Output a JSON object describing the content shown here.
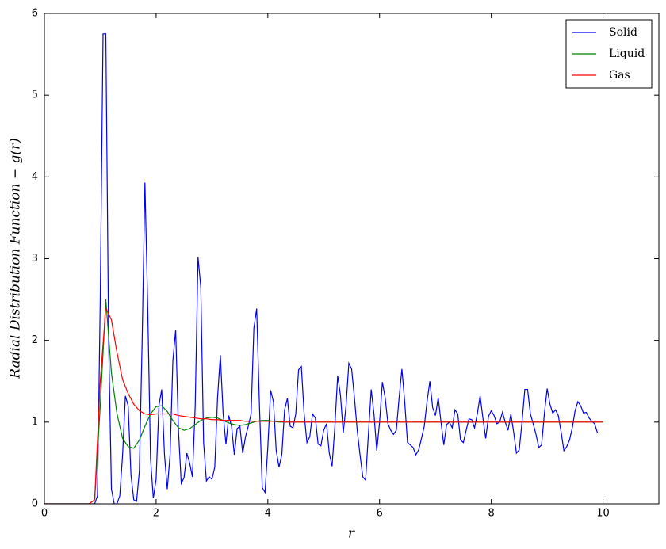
{
  "chart_data": {
    "type": "line",
    "xlabel": "r",
    "ylabel": "Radial Distribution Function − g(r)",
    "xlim": [
      0,
      11
    ],
    "ylim": [
      0,
      6
    ],
    "xticks": [
      0,
      2,
      4,
      6,
      8,
      10
    ],
    "yticks": [
      0,
      1,
      2,
      3,
      4,
      5,
      6
    ],
    "legend": "upper right",
    "series": [
      {
        "name": "Solid",
        "color": "#0000ff",
        "x": [
          0,
          0.05,
          0.1,
          0.15,
          0.2,
          0.25,
          0.3,
          0.35,
          0.4,
          0.45,
          0.5,
          0.55,
          0.6,
          0.65,
          0.7,
          0.75,
          0.8,
          0.85,
          0.9,
          0.95,
          1,
          1.05,
          1.1,
          1.15,
          1.2,
          1.25,
          1.3,
          1.35,
          1.4,
          1.45,
          1.5,
          1.55,
          1.6,
          1.65,
          1.7,
          1.75,
          1.8,
          1.85,
          1.9,
          1.95,
          2,
          2.05,
          2.1,
          2.15,
          2.2,
          2.25,
          2.3,
          2.35,
          2.4,
          2.45,
          2.5,
          2.55,
          2.6,
          2.65,
          2.7,
          2.75,
          2.8,
          2.85,
          2.9,
          2.95,
          3,
          3.05,
          3.1,
          3.15,
          3.2,
          3.25,
          3.3,
          3.35,
          3.4,
          3.45,
          3.5,
          3.55,
          3.6,
          3.65,
          3.7,
          3.75,
          3.8,
          3.85,
          3.9,
          3.95,
          4,
          4.05,
          4.1,
          4.15,
          4.2,
          4.25,
          4.3,
          4.35,
          4.4,
          4.45,
          4.5,
          4.55,
          4.6,
          4.65,
          4.7,
          4.75,
          4.8,
          4.85,
          4.9,
          4.95,
          5,
          5.05,
          5.1,
          5.15,
          5.2,
          5.25,
          5.3,
          5.35,
          5.4,
          5.45,
          5.5,
          5.55,
          5.6,
          5.65,
          5.7,
          5.75,
          5.8,
          5.85,
          5.9,
          5.95,
          6,
          6.05,
          6.1,
          6.15,
          6.2,
          6.25,
          6.3,
          6.35,
          6.4,
          6.45,
          6.5,
          6.55,
          6.6,
          6.65,
          6.7,
          6.75,
          6.8,
          6.85,
          6.9,
          6.95,
          7,
          7.05,
          7.1,
          7.15,
          7.2,
          7.25,
          7.3,
          7.35,
          7.4,
          7.45,
          7.5,
          7.55,
          7.6,
          7.65,
          7.7,
          7.75,
          7.8,
          7.85,
          7.9,
          7.95,
          8,
          8.05,
          8.1,
          8.15,
          8.2,
          8.25,
          8.3,
          8.35,
          8.4,
          8.45,
          8.5,
          8.55,
          8.6,
          8.65,
          8.7,
          8.75,
          8.8,
          8.85,
          8.9,
          8.95,
          9,
          9.05,
          9.1,
          9.15,
          9.2,
          9.25,
          9.3,
          9.35,
          9.4,
          9.45,
          9.5,
          9.55,
          9.6,
          9.65,
          9.7,
          9.75,
          9.8,
          9.85,
          9.9
        ],
        "values": [
          0,
          0,
          0,
          0,
          0,
          0,
          0,
          0,
          0,
          0,
          0,
          0,
          0,
          0,
          0,
          0,
          0,
          0,
          0,
          0.1,
          2.5,
          5.75,
          5.75,
          2.0,
          0.18,
          0,
          0,
          0.1,
          0.6,
          1.32,
          1.2,
          0.35,
          0.05,
          0.03,
          0.4,
          2.0,
          3.93,
          2.4,
          0.55,
          0.07,
          0.3,
          1.2,
          1.4,
          0.6,
          0.18,
          0.6,
          1.75,
          2.13,
          0.9,
          0.25,
          0.32,
          0.62,
          0.5,
          0.33,
          1.2,
          3.02,
          2.65,
          0.75,
          0.28,
          0.33,
          0.3,
          0.45,
          1.3,
          1.82,
          1.1,
          0.73,
          1.08,
          0.95,
          0.6,
          0.92,
          0.95,
          0.62,
          0.82,
          0.95,
          1.1,
          2.15,
          2.39,
          1.2,
          0.2,
          0.14,
          0.7,
          1.39,
          1.25,
          0.65,
          0.45,
          0.6,
          1.15,
          1.29,
          0.95,
          0.93,
          1.1,
          1.64,
          1.68,
          1.1,
          0.75,
          0.82,
          1.1,
          1.05,
          0.73,
          0.71,
          0.9,
          0.98,
          0.62,
          0.46,
          0.95,
          1.57,
          1.33,
          0.87,
          1.2,
          1.72,
          1.65,
          1.3,
          0.9,
          0.6,
          0.33,
          0.29,
          0.85,
          1.4,
          1.1,
          0.65,
          1.0,
          1.49,
          1.3,
          0.98,
          0.9,
          0.85,
          0.9,
          1.3,
          1.65,
          1.25,
          0.75,
          0.72,
          0.69,
          0.6,
          0.66,
          0.8,
          0.95,
          1.25,
          1.5,
          1.18,
          1.08,
          1.3,
          1.0,
          0.72,
          0.97,
          1.0,
          0.93,
          1.15,
          1.1,
          0.78,
          0.75,
          0.9,
          1.04,
          1.03,
          0.93,
          1.1,
          1.32,
          1.05,
          0.8,
          1.07,
          1.14,
          1.08,
          0.98,
          1.0,
          1.12,
          1.0,
          0.9,
          1.1,
          0.88,
          0.62,
          0.66,
          1.0,
          1.4,
          1.4,
          1.1,
          0.98,
          0.85,
          0.69,
          0.72,
          1.1,
          1.41,
          1.22,
          1.11,
          1.15,
          1.08,
          0.88,
          0.65,
          0.7,
          0.78,
          0.93,
          1.14,
          1.25,
          1.2,
          1.11,
          1.12,
          1.05,
          1.01,
          0.98,
          0.87
        ]
      },
      {
        "name": "Liquid",
        "color": "#008000",
        "x": [
          0,
          0.1,
          0.2,
          0.3,
          0.4,
          0.5,
          0.6,
          0.7,
          0.8,
          0.9,
          1,
          1.1,
          1.2,
          1.3,
          1.4,
          1.5,
          1.6,
          1.7,
          1.8,
          1.9,
          2,
          2.1,
          2.2,
          2.3,
          2.4,
          2.5,
          2.6,
          2.7,
          2.8,
          2.9,
          3,
          3.1,
          3.2,
          3.3,
          3.4,
          3.5,
          3.6,
          3.7,
          3.8,
          3.9,
          4,
          4.1,
          4.2,
          4.3,
          4.4,
          4.5,
          4.6,
          4.7,
          4.8,
          4.9,
          5,
          5.1,
          5.2,
          5.3,
          5.4,
          5.5,
          5.6,
          5.7,
          5.8,
          5.9,
          6,
          6.1,
          6.2,
          6.3,
          6.4,
          6.5,
          6.6,
          6.7,
          6.8,
          6.9,
          7,
          7.1,
          7.2,
          7.3,
          7.4,
          7.5,
          7.6,
          7.7,
          7.8,
          7.9,
          8,
          8.1,
          8.2,
          8.3,
          8.4,
          8.5,
          8.6,
          8.7,
          8.8,
          8.9,
          9,
          9.1,
          9.2,
          9.3,
          9.4,
          9.5,
          9.6,
          9.7,
          9.8,
          9.9,
          10
        ],
        "values": [
          0,
          0,
          0,
          0,
          0,
          0,
          0,
          0,
          0,
          0.05,
          1.2,
          2.5,
          1.6,
          1.1,
          0.8,
          0.7,
          0.68,
          0.78,
          0.95,
          1.1,
          1.19,
          1.2,
          1.13,
          1.02,
          0.93,
          0.9,
          0.92,
          0.97,
          1.02,
          1.05,
          1.06,
          1.05,
          1.02,
          0.99,
          0.97,
          0.96,
          0.97,
          0.99,
          1.01,
          1.02,
          1.02,
          1.01,
          1,
          1,
          1,
          1,
          1,
          1,
          1,
          1,
          1,
          1,
          1,
          1,
          1,
          1,
          1,
          1,
          1,
          1,
          1,
          1,
          1,
          1,
          1,
          1,
          1,
          1,
          1,
          1,
          1,
          1,
          1,
          1,
          1,
          1,
          1,
          1,
          1,
          1,
          1,
          1,
          1,
          1,
          1,
          1,
          1,
          1,
          1,
          1,
          1,
          1,
          1,
          1,
          1,
          1,
          1,
          1,
          1,
          1,
          1
        ]
      },
      {
        "name": "Gas",
        "color": "#ff0000",
        "x": [
          0,
          0.1,
          0.2,
          0.3,
          0.4,
          0.5,
          0.6,
          0.7,
          0.8,
          0.9,
          1,
          1.1,
          1.2,
          1.3,
          1.4,
          1.5,
          1.6,
          1.7,
          1.8,
          1.9,
          2,
          2.1,
          2.2,
          2.3,
          2.4,
          2.5,
          2.6,
          2.7,
          2.8,
          2.9,
          3,
          3.1,
          3.2,
          3.3,
          3.4,
          3.5,
          3.6,
          3.7,
          3.8,
          3.9,
          4,
          4.1,
          4.2,
          4.3,
          4.4,
          4.5,
          4.6,
          4.7,
          4.8,
          4.9,
          5,
          5.1,
          5.2,
          5.3,
          5.4,
          5.5,
          5.6,
          5.7,
          5.8,
          5.9,
          6,
          6.1,
          6.2,
          6.3,
          6.4,
          6.5,
          6.6,
          6.7,
          6.8,
          6.9,
          7,
          7.1,
          7.2,
          7.3,
          7.4,
          7.5,
          7.6,
          7.7,
          7.8,
          7.9,
          8,
          8.1,
          8.2,
          8.3,
          8.4,
          8.5,
          8.6,
          8.7,
          8.8,
          8.9,
          9,
          9.1,
          9.2,
          9.3,
          9.4,
          9.5,
          9.6,
          9.7,
          9.8,
          9.9,
          10
        ],
        "values": [
          0,
          0,
          0,
          0,
          0,
          0,
          0,
          0,
          0,
          0.05,
          1.5,
          2.4,
          2.25,
          1.85,
          1.52,
          1.35,
          1.22,
          1.14,
          1.1,
          1.09,
          1.1,
          1.1,
          1.1,
          1.1,
          1.08,
          1.07,
          1.06,
          1.05,
          1.04,
          1.04,
          1.03,
          1.03,
          1.02,
          1.02,
          1.02,
          1.02,
          1.01,
          1.01,
          1.01,
          1.01,
          1.01,
          1.01,
          1.01,
          1,
          1,
          1,
          1,
          1,
          1,
          1,
          1,
          1,
          1,
          1,
          1,
          1,
          1,
          1,
          1,
          1,
          1,
          1,
          1,
          1,
          1,
          1,
          1,
          1,
          1,
          1,
          1,
          1,
          1,
          1,
          1,
          1,
          1,
          1,
          1,
          1,
          1,
          1,
          1,
          1,
          1,
          1,
          1,
          1,
          1,
          1,
          1,
          1,
          1,
          1,
          1,
          1,
          1,
          1,
          1,
          1,
          1
        ]
      }
    ]
  }
}
